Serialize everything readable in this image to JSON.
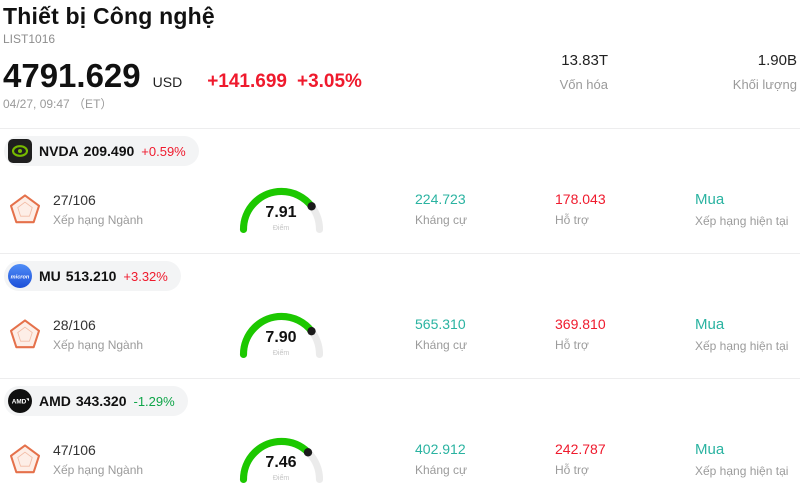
{
  "header": {
    "title": "Thiết bị Công nghệ",
    "list_id": "LIST1016",
    "price": "4791.629",
    "currency": "USD",
    "change_abs": "+141.699",
    "change_pct": "+3.05%",
    "change_dir": "up",
    "timestamp": "04/27, 09:47 （ET）",
    "stats": [
      {
        "value": "13.83T",
        "label": "Vốn hóa"
      },
      {
        "value": "1.90B",
        "label": "Khối lượng"
      }
    ]
  },
  "labels": {
    "rank": "Xếp hạng Ngành",
    "score": "Điểm",
    "resistance": "Kháng cự",
    "support": "Hỗ trợ",
    "rating": "Xếp hạng hiện tại"
  },
  "stocks": [
    {
      "ticker": "NVDA",
      "price": "209.490",
      "change": "+0.59%",
      "change_dir": "up",
      "rank": "27/106",
      "score": "7.91",
      "score_value": 7.91,
      "resistance": "224.723",
      "support": "178.043",
      "rating": "Mua",
      "logo": "nvidia"
    },
    {
      "ticker": "MU",
      "price": "513.210",
      "change": "+3.32%",
      "change_dir": "up",
      "rank": "28/106",
      "score": "7.90",
      "score_value": 7.9,
      "resistance": "565.310",
      "support": "369.810",
      "rating": "Mua",
      "logo": "micron"
    },
    {
      "ticker": "AMD",
      "price": "343.320",
      "change": "-1.29%",
      "change_dir": "down",
      "rank": "47/106",
      "score": "7.46",
      "score_value": 7.46,
      "resistance": "402.912",
      "support": "242.787",
      "rating": "Mua",
      "logo": "amd"
    }
  ],
  "colors": {
    "up": "#ef1a2d",
    "down": "#0fa549",
    "accent_teal": "#2ab3a1",
    "gauge_green": "#1cc800",
    "pentagon_orange": "#e5714b"
  }
}
